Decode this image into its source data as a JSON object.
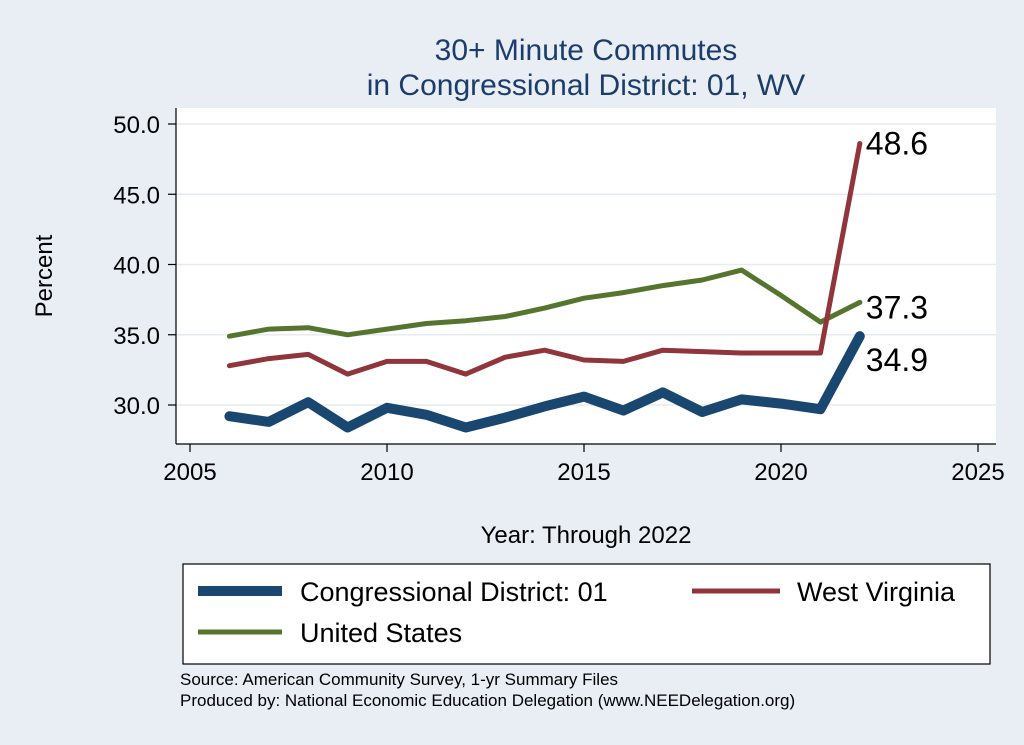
{
  "chart_data": {
    "type": "line",
    "title_lines": [
      "30+ Minute Commutes",
      "in Congressional District:  01, WV"
    ],
    "xlabel": "Year: Through 2022",
    "ylabel": "Percent",
    "xlim": [
      2005,
      2025
    ],
    "ylim": [
      27.5,
      51.5
    ],
    "x_ticks": [
      2005,
      2010,
      2015,
      2020,
      2025
    ],
    "y_ticks": [
      30,
      35,
      40,
      45,
      50
    ],
    "y_tick_labels": [
      "30.0",
      "35.0",
      "40.0",
      "45.0",
      "50.0"
    ],
    "grid": true,
    "legend_position": "bottom",
    "series": [
      {
        "name": "Congressional District:  01",
        "color": "#1a476f",
        "x": [
          2006,
          2007,
          2008,
          2009,
          2010,
          2011,
          2012,
          2013,
          2014,
          2015,
          2016,
          2017,
          2018,
          2019,
          2020,
          2021,
          2022
        ],
        "values": [
          29.2,
          28.8,
          30.2,
          28.4,
          29.8,
          29.3,
          28.4,
          29.1,
          29.9,
          30.6,
          29.6,
          30.9,
          29.5,
          30.4,
          30.1,
          29.7,
          34.9
        ],
        "end_label": "34.9"
      },
      {
        "name": "West Virginia",
        "color": "#90353b",
        "x": [
          2006,
          2007,
          2008,
          2009,
          2010,
          2011,
          2012,
          2013,
          2014,
          2015,
          2016,
          2017,
          2018,
          2019,
          2020,
          2021,
          2022
        ],
        "values": [
          32.8,
          33.3,
          33.6,
          32.2,
          33.1,
          33.1,
          32.2,
          33.4,
          33.9,
          33.2,
          33.1,
          33.9,
          33.8,
          33.7,
          33.7,
          33.7,
          48.6
        ],
        "end_label": "48.6"
      },
      {
        "name": "United States",
        "color": "#55752f",
        "x": [
          2006,
          2007,
          2008,
          2009,
          2010,
          2011,
          2012,
          2013,
          2014,
          2015,
          2016,
          2017,
          2018,
          2019,
          2020,
          2021,
          2022
        ],
        "values": [
          34.9,
          35.4,
          35.5,
          35.0,
          35.4,
          35.8,
          36.0,
          36.3,
          36.9,
          37.6,
          38.0,
          38.5,
          38.9,
          39.6,
          37.8,
          35.9,
          37.3
        ],
        "end_label": "37.3"
      }
    ]
  },
  "footer": {
    "source": "Source: American Community Survey, 1-yr Summary Files",
    "produced_by": "Produced by: National Economic Education Delegation (www.NEEDelegation.org)"
  }
}
